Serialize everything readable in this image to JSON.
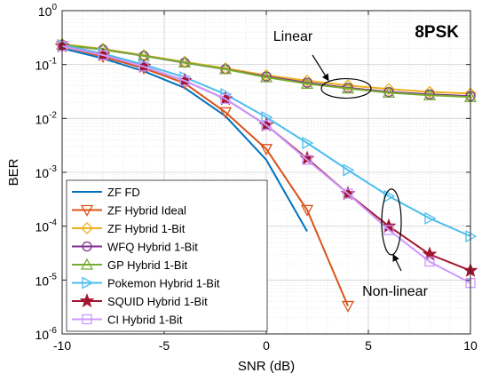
{
  "chart_data": {
    "type": "line",
    "title": "8PSK",
    "xlabel": "SNR (dB)",
    "ylabel": "BER",
    "xlim": [
      -10,
      10
    ],
    "ylim": [
      1e-06,
      1
    ],
    "y_scale": "log",
    "grid": true,
    "minor_grid": true,
    "legend_placement": "bottom-left",
    "x_ticks": [
      -10,
      -5,
      0,
      5,
      10
    ],
    "x_tick_labels": [
      "-10",
      "-5",
      "0",
      "5",
      "10"
    ],
    "y_ticks": [
      1e-06,
      1e-05,
      0.0001,
      0.001,
      0.01,
      0.1,
      1
    ],
    "y_tick_labels": [
      {
        "base": "10",
        "exp": "-6"
      },
      {
        "base": "10",
        "exp": "-5"
      },
      {
        "base": "10",
        "exp": "-4"
      },
      {
        "base": "10",
        "exp": "-3"
      },
      {
        "base": "10",
        "exp": "-2"
      },
      {
        "base": "10",
        "exp": "-1"
      },
      {
        "base": "10",
        "exp": "0"
      }
    ],
    "annotations": [
      {
        "text": "Linear",
        "kind": "ellipse-arrow",
        "target": [
          4,
          0.036
        ]
      },
      {
        "text": "Non-linear",
        "kind": "ellipse-arrow",
        "target": [
          6,
          0.00012
        ]
      }
    ],
    "series": [
      {
        "name": "ZF FD",
        "color": "#0072BD",
        "marker": "none",
        "x": [
          -10,
          -8,
          -6,
          -4,
          -2,
          0,
          2
        ],
        "y": [
          0.2,
          0.13,
          0.075,
          0.037,
          0.011,
          0.0017,
          8e-05
        ]
      },
      {
        "name": "ZF Hybrid Ideal",
        "color": "#D95319",
        "marker": "triangle-down",
        "x": [
          -10,
          -8,
          -6,
          -4,
          -2,
          0,
          2,
          4
        ],
        "y": [
          0.22,
          0.14,
          0.085,
          0.045,
          0.013,
          0.0027,
          0.0002,
          3.3e-06
        ]
      },
      {
        "name": "ZF Hybrid 1-Bit",
        "color": "#EDB120",
        "marker": "diamond",
        "x": [
          -10,
          -8,
          -6,
          -4,
          -2,
          0,
          2,
          4,
          6,
          8,
          10
        ],
        "y": [
          0.24,
          0.195,
          0.148,
          0.112,
          0.085,
          0.063,
          0.05,
          0.041,
          0.035,
          0.031,
          0.029
        ]
      },
      {
        "name": "WFQ Hybrid 1-Bit",
        "color": "#7E2F8E",
        "marker": "circle",
        "x": [
          -10,
          -8,
          -6,
          -4,
          -2,
          0,
          2,
          4,
          6,
          8,
          10
        ],
        "y": [
          0.23,
          0.19,
          0.145,
          0.108,
          0.082,
          0.06,
          0.046,
          0.037,
          0.031,
          0.028,
          0.026
        ]
      },
      {
        "name": "GP Hybrid 1-Bit",
        "color": "#77AC30",
        "marker": "triangle-up",
        "x": [
          -10,
          -8,
          -6,
          -4,
          -2,
          0,
          2,
          4,
          6,
          8,
          10
        ],
        "y": [
          0.235,
          0.19,
          0.146,
          0.109,
          0.082,
          0.058,
          0.044,
          0.036,
          0.03,
          0.027,
          0.025
        ]
      },
      {
        "name": "Pokemon Hybrid 1-Bit",
        "color": "#4DBEEE",
        "marker": "triangle-right",
        "x": [
          -10,
          -8,
          -6,
          -4,
          -2,
          0,
          2,
          4,
          6,
          8,
          10
        ],
        "y": [
          0.23,
          0.16,
          0.1,
          0.058,
          0.028,
          0.0105,
          0.0035,
          0.0011,
          0.00036,
          0.00014,
          6.5e-05
        ]
      },
      {
        "name": "SQUID Hybrid 1-Bit",
        "color": "#A2142F",
        "marker": "star",
        "x": [
          -10,
          -8,
          -6,
          -4,
          -2,
          0,
          2,
          4,
          6,
          8,
          10
        ],
        "y": [
          0.22,
          0.15,
          0.092,
          0.05,
          0.023,
          0.0075,
          0.0018,
          0.0004,
          0.0001,
          3e-05,
          1.5e-05
        ]
      },
      {
        "name": "CI Hybrid 1-Bit",
        "color": "#CC99FF",
        "marker": "square",
        "x": [
          -10,
          -8,
          -6,
          -4,
          -2,
          0,
          2,
          4,
          6,
          8,
          10
        ],
        "y": [
          0.22,
          0.15,
          0.092,
          0.05,
          0.023,
          0.0075,
          0.0017,
          0.0004,
          8.5e-05,
          2.2e-05,
          8.8e-06
        ]
      }
    ]
  }
}
